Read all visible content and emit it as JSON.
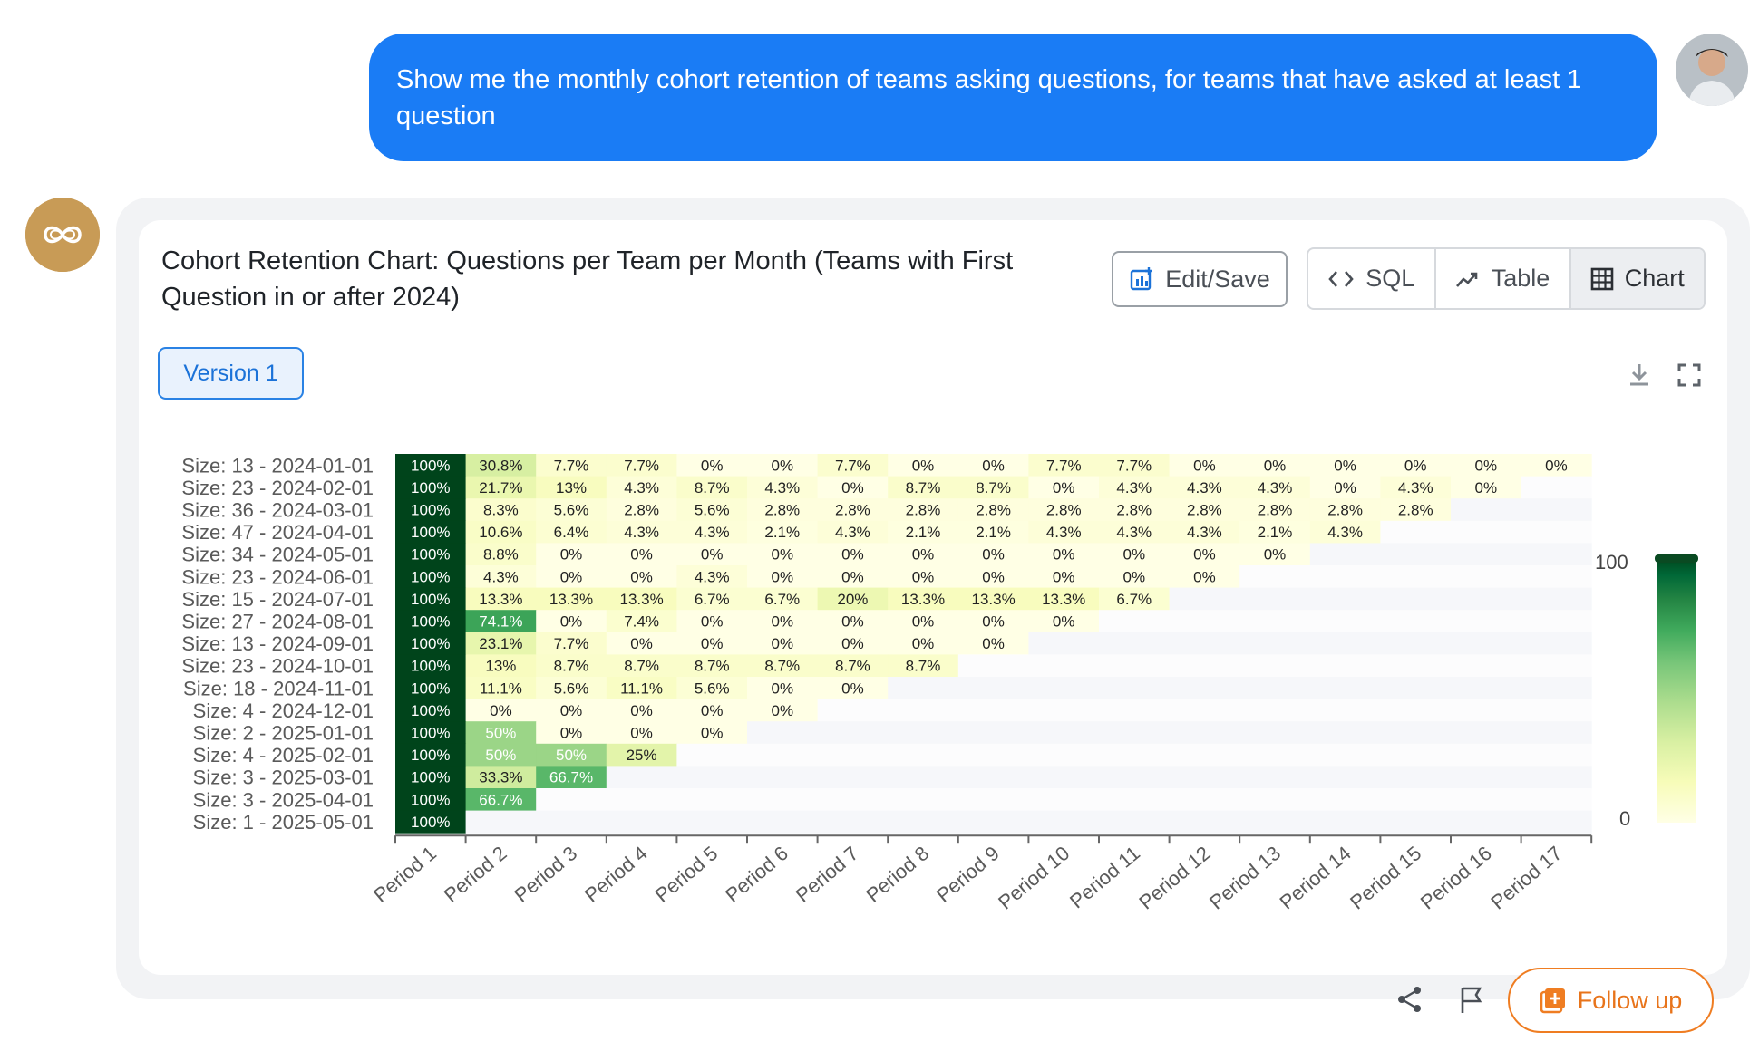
{
  "user_message": "Show me the monthly cohort retention of teams asking questions, for teams that have asked at least 1 question",
  "card": {
    "title": "Cohort Retention Chart: Questions per Team per Month (Teams with First Question in or after 2024)",
    "edit_save_label": "Edit/Save",
    "view_tabs": [
      "SQL",
      "Table",
      "Chart"
    ],
    "active_tab": "Chart",
    "version_label": "Version 1",
    "follow_up_label": "Follow up"
  },
  "colors": {
    "user_bubble": "#1a7cf5",
    "accent_orange": "#ef7d22",
    "scale_low": "#ffffe5",
    "scale_high": "#00441b"
  },
  "chart_data": {
    "type": "heatmap",
    "title": "",
    "xlabel": "",
    "ylabel": "",
    "x": [
      "Period 1",
      "Period 2",
      "Period 3",
      "Period 4",
      "Period 5",
      "Period 6",
      "Period 7",
      "Period 8",
      "Period 9",
      "Period 10",
      "Period 11",
      "Period 12",
      "Period 13",
      "Period 14",
      "Period 15",
      "Period 16",
      "Period 17"
    ],
    "y": [
      "Size: 13 - 2024-01-01",
      "Size: 23 - 2024-02-01",
      "Size: 36 - 2024-03-01",
      "Size: 47 - 2024-04-01",
      "Size: 34 - 2024-05-01",
      "Size: 23 - 2024-06-01",
      "Size: 15 - 2024-07-01",
      "Size: 27 - 2024-08-01",
      "Size: 13 - 2024-09-01",
      "Size: 23 - 2024-10-01",
      "Size: 18 - 2024-11-01",
      "Size: 4 - 2024-12-01",
      "Size: 2 - 2025-01-01",
      "Size: 4 - 2025-02-01",
      "Size: 3 - 2025-03-01",
      "Size: 3 - 2025-04-01",
      "Size: 1 - 2025-05-01"
    ],
    "values": [
      [
        100,
        30.8,
        7.7,
        7.7,
        0,
        0,
        7.7,
        0,
        0,
        7.7,
        7.7,
        0,
        0,
        0,
        0,
        0,
        0
      ],
      [
        100,
        21.7,
        13,
        4.3,
        8.7,
        4.3,
        0,
        8.7,
        8.7,
        0,
        4.3,
        4.3,
        4.3,
        0,
        4.3,
        0,
        null
      ],
      [
        100,
        8.3,
        5.6,
        2.8,
        5.6,
        2.8,
        2.8,
        2.8,
        2.8,
        2.8,
        2.8,
        2.8,
        2.8,
        2.8,
        2.8,
        null,
        null
      ],
      [
        100,
        10.6,
        6.4,
        4.3,
        4.3,
        2.1,
        4.3,
        2.1,
        2.1,
        4.3,
        4.3,
        4.3,
        2.1,
        4.3,
        null,
        null,
        null
      ],
      [
        100,
        8.8,
        0,
        0,
        0,
        0,
        0,
        0,
        0,
        0,
        0,
        0,
        0,
        null,
        null,
        null,
        null
      ],
      [
        100,
        4.3,
        0,
        0,
        4.3,
        0,
        0,
        0,
        0,
        0,
        0,
        0,
        null,
        null,
        null,
        null,
        null
      ],
      [
        100,
        13.3,
        13.3,
        13.3,
        6.7,
        6.7,
        20,
        13.3,
        13.3,
        13.3,
        6.7,
        null,
        null,
        null,
        null,
        null,
        null
      ],
      [
        100,
        74.1,
        0,
        7.4,
        0,
        0,
        0,
        0,
        0,
        0,
        null,
        null,
        null,
        null,
        null,
        null,
        null
      ],
      [
        100,
        23.1,
        7.7,
        0,
        0,
        0,
        0,
        0,
        0,
        null,
        null,
        null,
        null,
        null,
        null,
        null,
        null
      ],
      [
        100,
        13,
        8.7,
        8.7,
        8.7,
        8.7,
        8.7,
        8.7,
        null,
        null,
        null,
        null,
        null,
        null,
        null,
        null,
        null
      ],
      [
        100,
        11.1,
        5.6,
        11.1,
        5.6,
        0,
        0,
        null,
        null,
        null,
        null,
        null,
        null,
        null,
        null,
        null,
        null
      ],
      [
        100,
        0,
        0,
        0,
        0,
        0,
        null,
        null,
        null,
        null,
        null,
        null,
        null,
        null,
        null,
        null,
        null
      ],
      [
        100,
        50,
        0,
        0,
        0,
        null,
        null,
        null,
        null,
        null,
        null,
        null,
        null,
        null,
        null,
        null,
        null
      ],
      [
        100,
        50,
        50,
        25,
        null,
        null,
        null,
        null,
        null,
        null,
        null,
        null,
        null,
        null,
        null,
        null,
        null
      ],
      [
        100,
        33.3,
        66.7,
        null,
        null,
        null,
        null,
        null,
        null,
        null,
        null,
        null,
        null,
        null,
        null,
        null,
        null
      ],
      [
        100,
        66.7,
        null,
        null,
        null,
        null,
        null,
        null,
        null,
        null,
        null,
        null,
        null,
        null,
        null,
        null,
        null
      ],
      [
        100,
        null,
        null,
        null,
        null,
        null,
        null,
        null,
        null,
        null,
        null,
        null,
        null,
        null,
        null,
        null,
        null
      ]
    ],
    "unit_suffix": "%",
    "colorscale": {
      "min": 0,
      "max": 100,
      "min_label": "0",
      "max_label": "100"
    },
    "grid": false
  }
}
